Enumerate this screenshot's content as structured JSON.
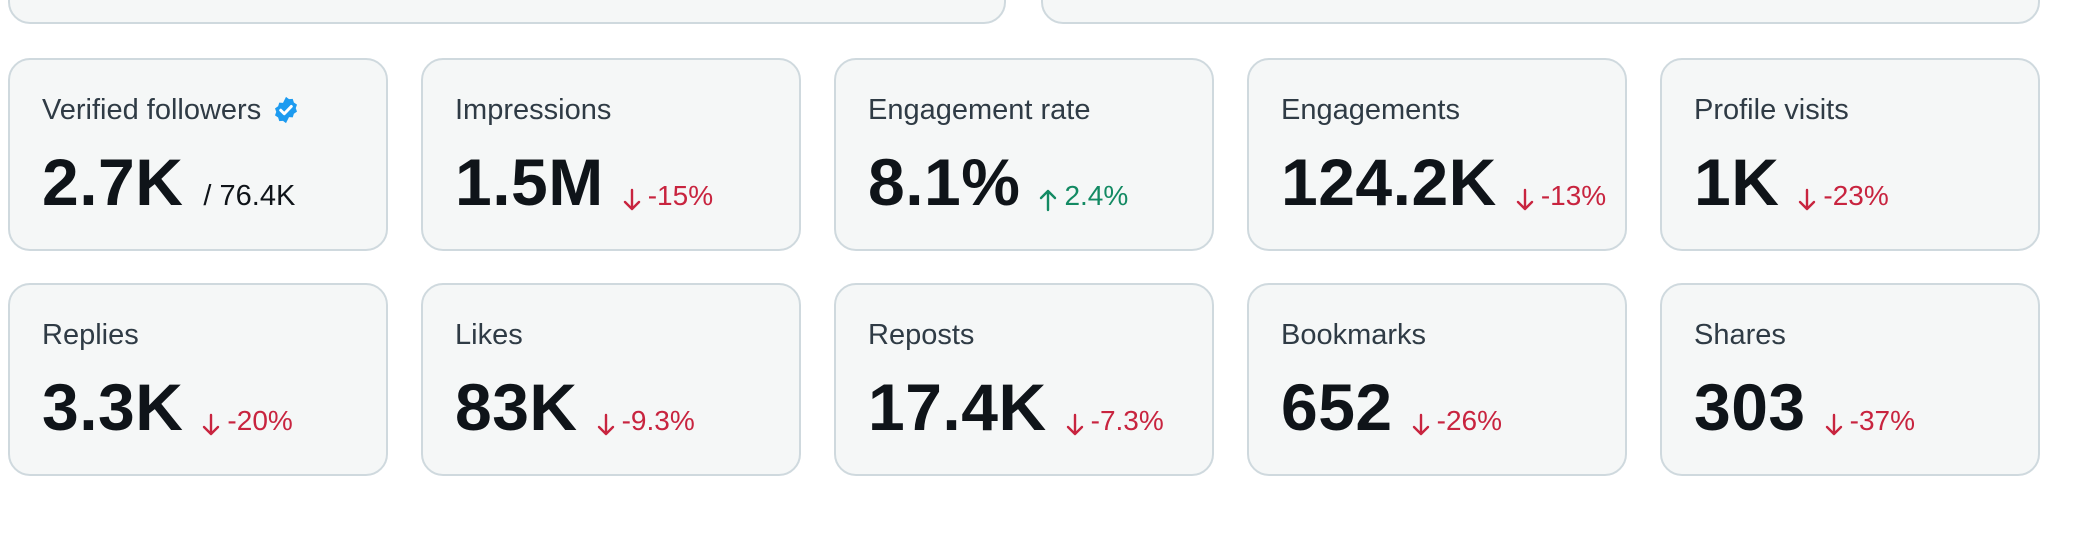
{
  "colors": {
    "down": "#c8243f",
    "up": "#138a63",
    "verified": "#1d9bf0"
  },
  "metrics": [
    {
      "label": "Verified followers",
      "value": "2.7K",
      "sub": "/ 76.4K",
      "icon": "verified-badge-icon"
    },
    {
      "label": "Impressions",
      "value": "1.5M",
      "delta": "-15%",
      "dir": "down"
    },
    {
      "label": "Engagement rate",
      "value": "8.1%",
      "delta": "2.4%",
      "dir": "up"
    },
    {
      "label": "Engagements",
      "value": "124.2K",
      "delta": "-13%",
      "dir": "down"
    },
    {
      "label": "Profile visits",
      "value": "1K",
      "delta": "-23%",
      "dir": "down"
    },
    {
      "label": "Replies",
      "value": "3.3K",
      "delta": "-20%",
      "dir": "down"
    },
    {
      "label": "Likes",
      "value": "83K",
      "delta": "-9.3%",
      "dir": "down"
    },
    {
      "label": "Reposts",
      "value": "17.4K",
      "delta": "-7.3%",
      "dir": "down"
    },
    {
      "label": "Bookmarks",
      "value": "652",
      "delta": "-26%",
      "dir": "down"
    },
    {
      "label": "Shares",
      "value": "303",
      "delta": "-37%",
      "dir": "down"
    }
  ]
}
